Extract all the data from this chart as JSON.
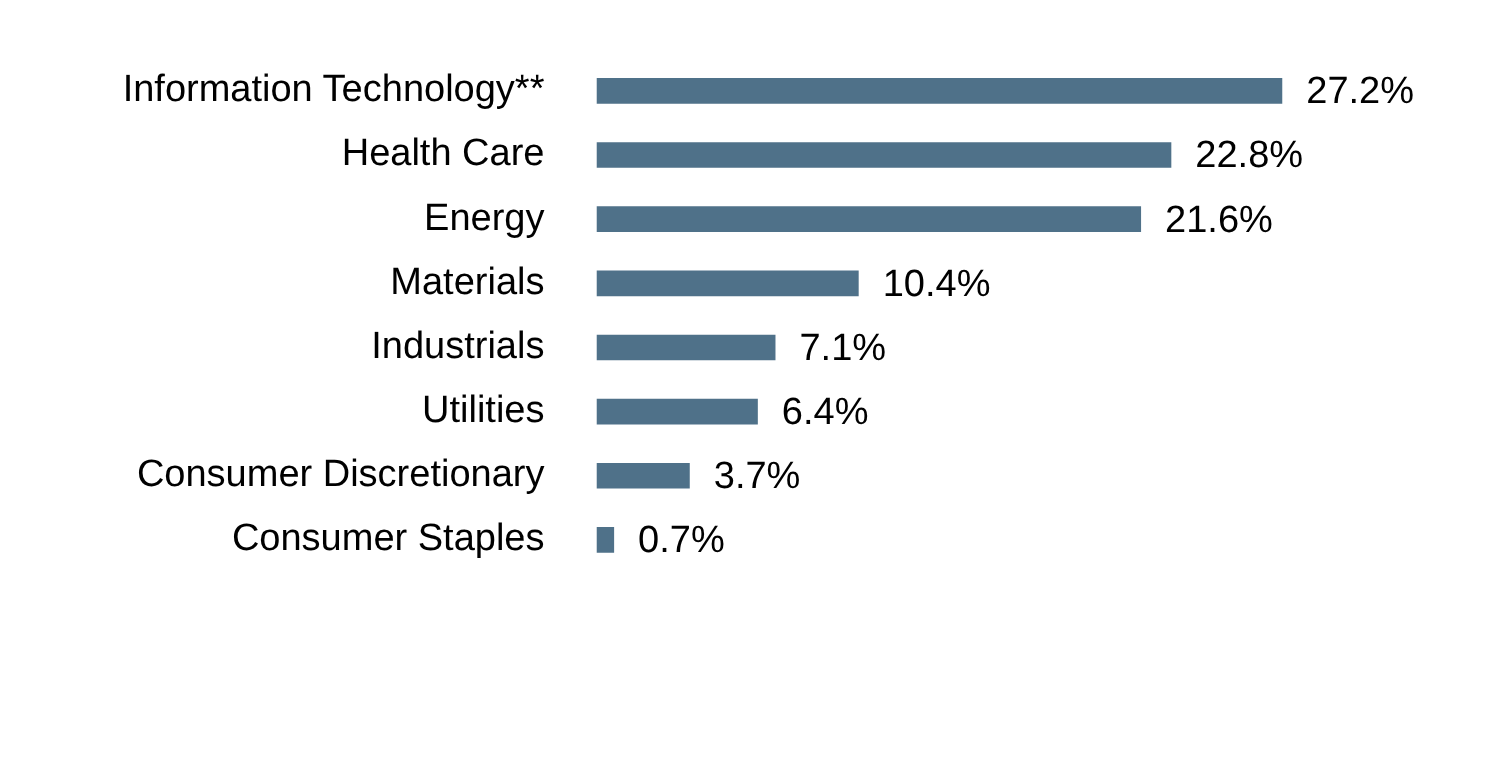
{
  "chart_data": {
    "type": "bar",
    "orientation": "horizontal",
    "categories": [
      "Information Technology**",
      "Health Care",
      "Energy",
      "Materials",
      "Industrials",
      "Utilities",
      "Consumer Discretionary",
      "Consumer Staples"
    ],
    "values": [
      27.2,
      22.8,
      21.6,
      10.4,
      7.1,
      6.4,
      3.7,
      0.7
    ],
    "value_labels": [
      "27.2%",
      "22.8%",
      "21.6%",
      "10.4%",
      "7.1%",
      "6.4%",
      "3.7%",
      "0.7%"
    ],
    "color": "#4f7189"
  }
}
